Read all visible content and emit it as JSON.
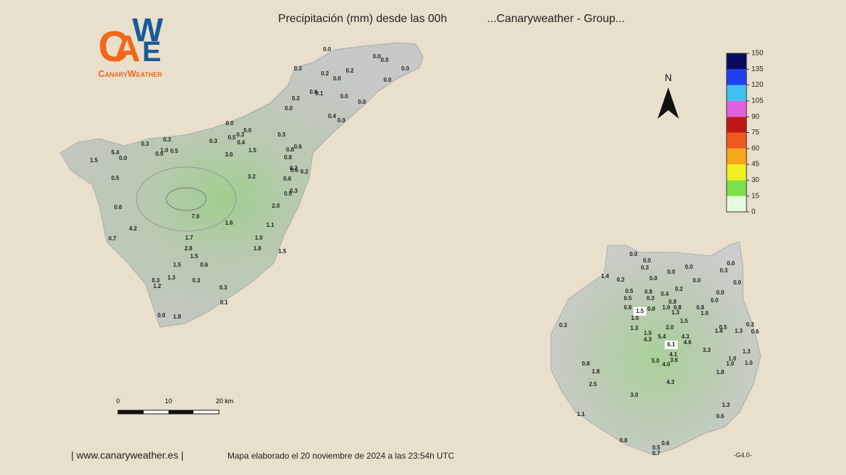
{
  "header": {
    "title": "Precipitación (mm) desde las 00h",
    "subtitle": "...Canaryweather - Group..."
  },
  "logo": {
    "letters": [
      "C",
      "A",
      "W",
      "E"
    ],
    "name": "CanaryWeather"
  },
  "compass": "N",
  "legend": {
    "ticks": [
      150,
      135,
      120,
      105,
      90,
      75,
      60,
      45,
      30,
      15,
      0
    ],
    "colors": [
      "#e8fbe0",
      "#7ee04a",
      "#f0f020",
      "#f5a818",
      "#f05a20",
      "#c01818",
      "#e060e0",
      "#40c0f0",
      "#2040f0",
      "#0a0a60"
    ]
  },
  "scale": {
    "labels": [
      "0",
      "10",
      "20 km"
    ]
  },
  "stations": {
    "tenerife": [
      "0.0",
      "0.0",
      "0.0",
      "0.3",
      "0.2",
      "0.2",
      "0.0",
      "0.0",
      "0.0",
      "0.6",
      "0.1",
      "0.0",
      "0.2",
      "0.0",
      "0.0",
      "0.4",
      "0.0",
      "0.0",
      "0.0",
      "0.3",
      "0.5",
      "0.3",
      "0.3",
      "0.3",
      "0.4",
      "0.3",
      "1.0",
      "0.5",
      "0.9",
      "1.5",
      "0.8",
      "0.6",
      "3.0",
      "5.4",
      "0.0",
      "1.5",
      "0.8",
      "0.2",
      "0.6",
      "0.2",
      "3.2",
      "0.5",
      "0.6",
      "0.3",
      "0.5",
      "2.0",
      "0.6",
      "7.0",
      "1.6",
      "1.1",
      "4.2",
      "0.7",
      "1.7",
      "1.0",
      "2.8",
      "1.8",
      "1.5",
      "1.5",
      "1.5",
      "0.6",
      "1.3",
      "0.3",
      "0.3",
      "1.2",
      "0.3",
      "0.1",
      "0.0",
      "1.8"
    ],
    "gran_canaria": [
      "0.0",
      "0.0",
      "0.3",
      "0.0",
      "0.0",
      "0.0",
      "0.3",
      "1.4",
      "0.2",
      "0.0",
      "0.0",
      "0.0",
      "0.2",
      "0.5",
      "0.8",
      "0.4",
      "0.0",
      "0.5",
      "0.3",
      "0.8",
      "0.0",
      "0.8",
      "0.8",
      "1.0",
      "0.8",
      "0.8",
      "1.5",
      "1.3",
      "1.0",
      "1.0",
      "1.5",
      "0.3",
      "1.3",
      "2.0",
      "0.5",
      "1.4",
      "1.3",
      "0.3",
      "0.6",
      "1.5",
      "5.4",
      "4.3",
      "4.3",
      "4.6",
      "6.1",
      "3.3",
      "4.1",
      "1.3",
      "3.6",
      "1.0",
      "5.0",
      "4.0",
      "1.0",
      "1.0",
      "0.8",
      "1.8",
      "1.8",
      "4.3",
      "2.5",
      "3.0",
      "1.3",
      "0.6",
      "1.1",
      "0.8",
      "0.6",
      "0.5",
      "0.7"
    ]
  },
  "footer": {
    "site": "| www.canaryweather.es |",
    "made": "Mapa elaborado el 20 noviembre de 2024 a las 23:54h UTC",
    "version": "-G4.0-"
  }
}
